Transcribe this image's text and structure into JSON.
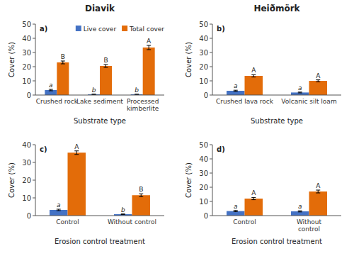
{
  "chart_data": [
    {
      "type": "bar",
      "title": "Diavik",
      "label": "a)",
      "categories": [
        "Crushed rock",
        "Lake sediment",
        "Processed\nkimberlite"
      ],
      "series": [
        {
          "name": "Live cover",
          "color": "#4472C4",
          "values": [
            3.5,
            0.5,
            0.5
          ],
          "errors": [
            0.5,
            0.15,
            0.1
          ],
          "letters": [
            "a",
            "b",
            "b"
          ]
        },
        {
          "name": "Total cover",
          "color": "#E36C09",
          "values": [
            23.0,
            20.5,
            33.5
          ],
          "errors": [
            1.0,
            1.0,
            1.5
          ],
          "letters": [
            "B",
            "B",
            "A"
          ]
        }
      ],
      "ylim": [
        0,
        50
      ],
      "yticks": [
        0,
        10,
        20,
        30,
        40,
        50
      ],
      "xlabel": "Substrate type",
      "ylabel": "Cover (%)",
      "legend": "upper right"
    },
    {
      "type": "bar",
      "title": "Heiðmörk",
      "label": "b)",
      "categories": [
        "Crushed lava rock",
        "Volcanic silt loam"
      ],
      "series": [
        {
          "color": "#4472C4",
          "values": [
            3.0,
            1.8
          ],
          "errors": [
            0.4,
            0.3
          ],
          "letters": [
            "a",
            "a"
          ]
        },
        {
          "color": "#E36C09",
          "values": [
            13.5,
            10.0
          ],
          "errors": [
            0.8,
            0.7
          ],
          "letters": [
            "A",
            "A"
          ]
        }
      ],
      "ylim": [
        0,
        50
      ],
      "yticks": [
        0,
        10,
        20,
        30,
        40,
        50
      ],
      "xlabel": "Substrate type",
      "ylabel": "Cover (%)"
    },
    {
      "type": "bar",
      "label": "c)",
      "categories": [
        "Control",
        "Without control"
      ],
      "series": [
        {
          "color": "#4472C4",
          "values": [
            3.2,
            0.8
          ],
          "errors": [
            0.4,
            0.15
          ],
          "letters": [
            "a",
            "b"
          ]
        },
        {
          "color": "#E36C09",
          "values": [
            35.5,
            11.5
          ],
          "errors": [
            1.0,
            0.8
          ],
          "letters": [
            "A",
            "B"
          ]
        }
      ],
      "ylim": [
        0,
        40
      ],
      "yticks": [
        0,
        10,
        20,
        30,
        40
      ],
      "xlabel": "Erosion control treatment",
      "ylabel": "Cover (%)"
    },
    {
      "type": "bar",
      "label": "d)",
      "categories": [
        "Control",
        "Without\ncontrol"
      ],
      "series": [
        {
          "color": "#4472C4",
          "values": [
            3.2,
            3.0
          ],
          "errors": [
            0.4,
            0.4
          ],
          "letters": [
            "a",
            "a"
          ]
        },
        {
          "color": "#E36C09",
          "values": [
            12.0,
            17.0
          ],
          "errors": [
            0.8,
            1.0
          ],
          "letters": [
            "A",
            "A"
          ]
        }
      ],
      "ylim": [
        0,
        50
      ],
      "yticks": [
        0,
        10,
        20,
        30,
        40,
        50
      ],
      "xlabel": "Erosion control treatment",
      "ylabel": "Cover (%)"
    }
  ]
}
